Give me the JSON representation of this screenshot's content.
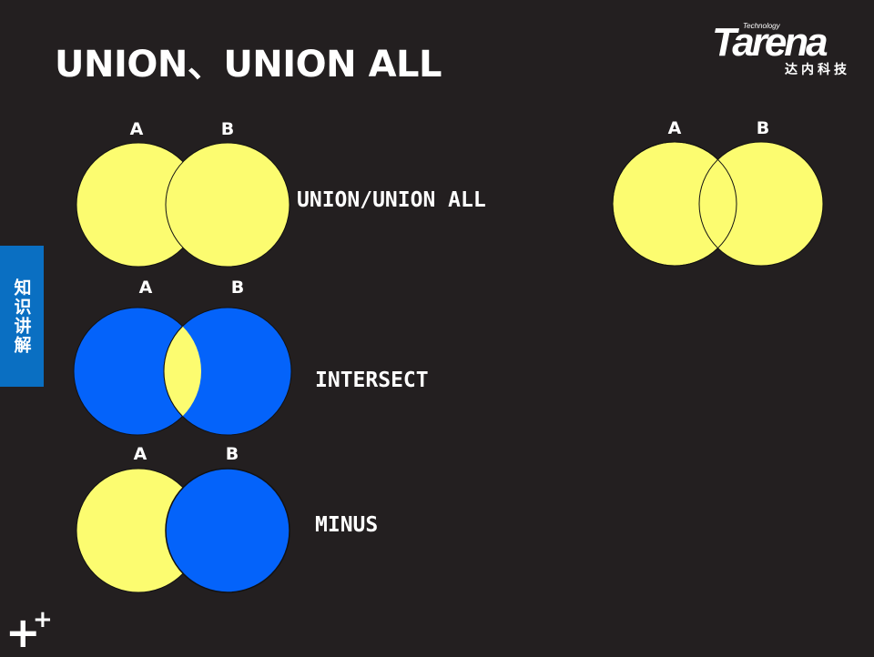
{
  "title": "UNION、UNION ALL",
  "logo": {
    "tagline": "Technology",
    "wordmark": "Tarena",
    "chinese": "达内科技"
  },
  "side_tab": "知识讲解",
  "colors": {
    "background": "#231f20",
    "yellow": "#fcfc70",
    "blue": "#0463fa",
    "tab": "#0a6fc2"
  },
  "diagrams": [
    {
      "id": "union",
      "label_a": "A",
      "label_b": "B",
      "operation": "UNION/UNION ALL"
    },
    {
      "id": "intersect",
      "label_a": "A",
      "label_b": "B",
      "operation": "INTERSECT"
    },
    {
      "id": "minus",
      "label_a": "A",
      "label_b": "B",
      "operation": "MINUS"
    },
    {
      "id": "overlap",
      "label_a": "A",
      "label_b": "B"
    }
  ],
  "footer_icon": "plus-plus-icon"
}
